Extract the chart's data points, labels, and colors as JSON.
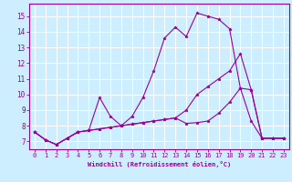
{
  "xlabel": "Windchill (Refroidissement éolien,°C)",
  "ylabel": "",
  "bg_color": "#cceeff",
  "line_color": "#990099",
  "grid_color": "#ffffff",
  "xlim": [
    -0.5,
    23.5
  ],
  "ylim": [
    6.5,
    15.8
  ],
  "xticks": [
    0,
    1,
    2,
    3,
    4,
    5,
    6,
    7,
    8,
    9,
    10,
    11,
    12,
    13,
    14,
    15,
    16,
    17,
    18,
    19,
    20,
    21,
    22,
    23
  ],
  "yticks": [
    7,
    8,
    9,
    10,
    11,
    12,
    13,
    14,
    15
  ],
  "series": [
    [
      7.6,
      7.1,
      6.8,
      7.2,
      7.6,
      7.7,
      9.8,
      8.6,
      8.0,
      8.6,
      9.8,
      11.5,
      13.6,
      14.3,
      13.7,
      15.2,
      15.0,
      14.8,
      14.2,
      10.4,
      8.3,
      7.2,
      7.2,
      7.2
    ],
    [
      7.6,
      7.1,
      6.8,
      7.2,
      7.6,
      7.7,
      7.8,
      7.9,
      8.0,
      8.1,
      8.2,
      8.3,
      8.4,
      8.5,
      8.15,
      8.2,
      8.3,
      8.8,
      9.5,
      10.4,
      10.3,
      7.2,
      7.2,
      7.2
    ],
    [
      7.6,
      7.1,
      6.8,
      7.2,
      7.6,
      7.7,
      7.8,
      7.9,
      8.0,
      8.1,
      8.2,
      8.3,
      8.4,
      8.5,
      9.0,
      10.0,
      10.5,
      11.0,
      11.5,
      12.6,
      10.3,
      7.2,
      7.2,
      7.2
    ]
  ]
}
